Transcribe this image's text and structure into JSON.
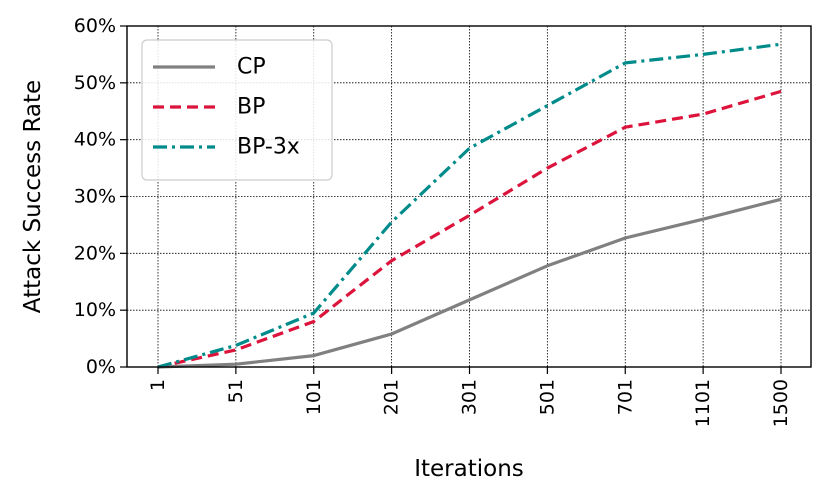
{
  "chart_data": {
    "type": "line",
    "title": "",
    "xlabel": "Iterations",
    "ylabel": "Attack Success Rate",
    "categories": [
      "1",
      "51",
      "101",
      "201",
      "301",
      "501",
      "701",
      "1101",
      "1500"
    ],
    "y_ticks": [
      "0%",
      "10%",
      "20%",
      "30%",
      "40%",
      "50%",
      "60%"
    ],
    "ylim": [
      0,
      60
    ],
    "y_unit": "%",
    "grid": true,
    "legend_position": "upper-left",
    "series": [
      {
        "name": "CP",
        "color": "#808080",
        "style": "solid",
        "values": [
          0,
          0.5,
          2.0,
          5.8,
          11.8,
          17.8,
          22.7,
          26.0,
          29.5
        ]
      },
      {
        "name": "BP",
        "color": "#dc143c",
        "style": "dashed",
        "values": [
          0,
          3.0,
          8.0,
          18.7,
          26.7,
          35.0,
          42.2,
          44.5,
          48.5
        ]
      },
      {
        "name": "BP-3x",
        "color": "#008b8b",
        "style": "dashdot",
        "values": [
          0,
          3.8,
          9.5,
          25.5,
          38.5,
          46.0,
          53.5,
          55.0,
          56.8
        ]
      }
    ]
  }
}
